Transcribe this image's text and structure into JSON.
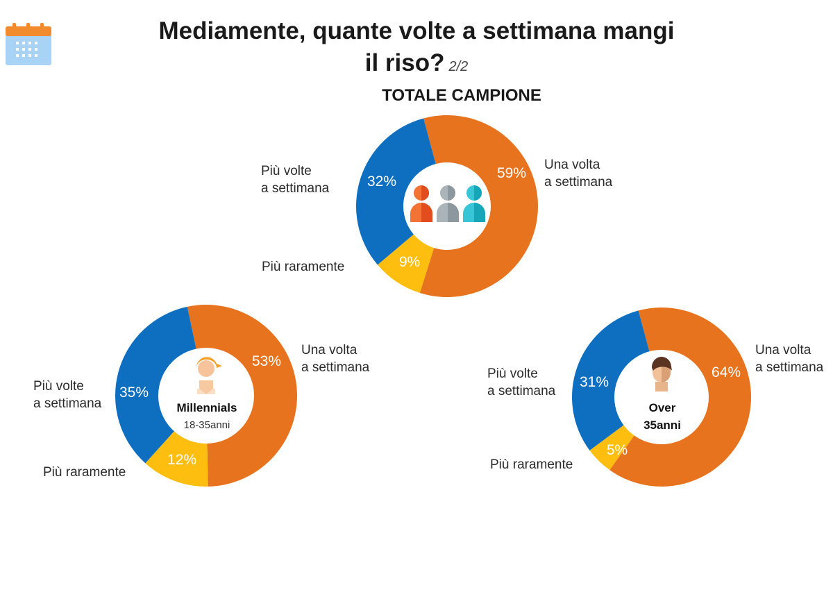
{
  "header": {
    "title_line1": "Mediamente, quante volte a settimana mangi",
    "title_line2": "il riso?",
    "page_indicator": "2/2",
    "subtitle": "TOTALE CAMPIONE"
  },
  "colors": {
    "una_volta": "#E8731E",
    "piu_volte": "#0E6FC1",
    "piu_raramente": "#FDBE10"
  },
  "chart_data": [
    {
      "type": "pie",
      "title": "TOTALE CAMPIONE",
      "center_label": "",
      "center_sublabel": "",
      "center_icon": "people-group-icon",
      "categories": [
        "Una volta a settimana",
        "Più raramente",
        "Più volte a settimana"
      ],
      "values": [
        59,
        9,
        32
      ],
      "value_labels": [
        "59%",
        "9%",
        "32%"
      ]
    },
    {
      "type": "pie",
      "title": "",
      "center_label": "Millennials",
      "center_sublabel": "18-35anni",
      "center_icon": "millennial-avatar-icon",
      "categories": [
        "Una volta a settimana",
        "Più raramente",
        "Più volte a settimana"
      ],
      "values": [
        53,
        12,
        35
      ],
      "value_labels": [
        "53%",
        "12%",
        "35%"
      ]
    },
    {
      "type": "pie",
      "title": "",
      "center_label": "Over",
      "center_sublabel": "35anni",
      "center_icon": "over35-avatar-icon",
      "categories": [
        "Una volta a settimana",
        "Più raramente",
        "Più volte a settimana"
      ],
      "values": [
        64,
        5,
        31
      ],
      "value_labels": [
        "64%",
        "5%",
        "31%"
      ]
    }
  ]
}
